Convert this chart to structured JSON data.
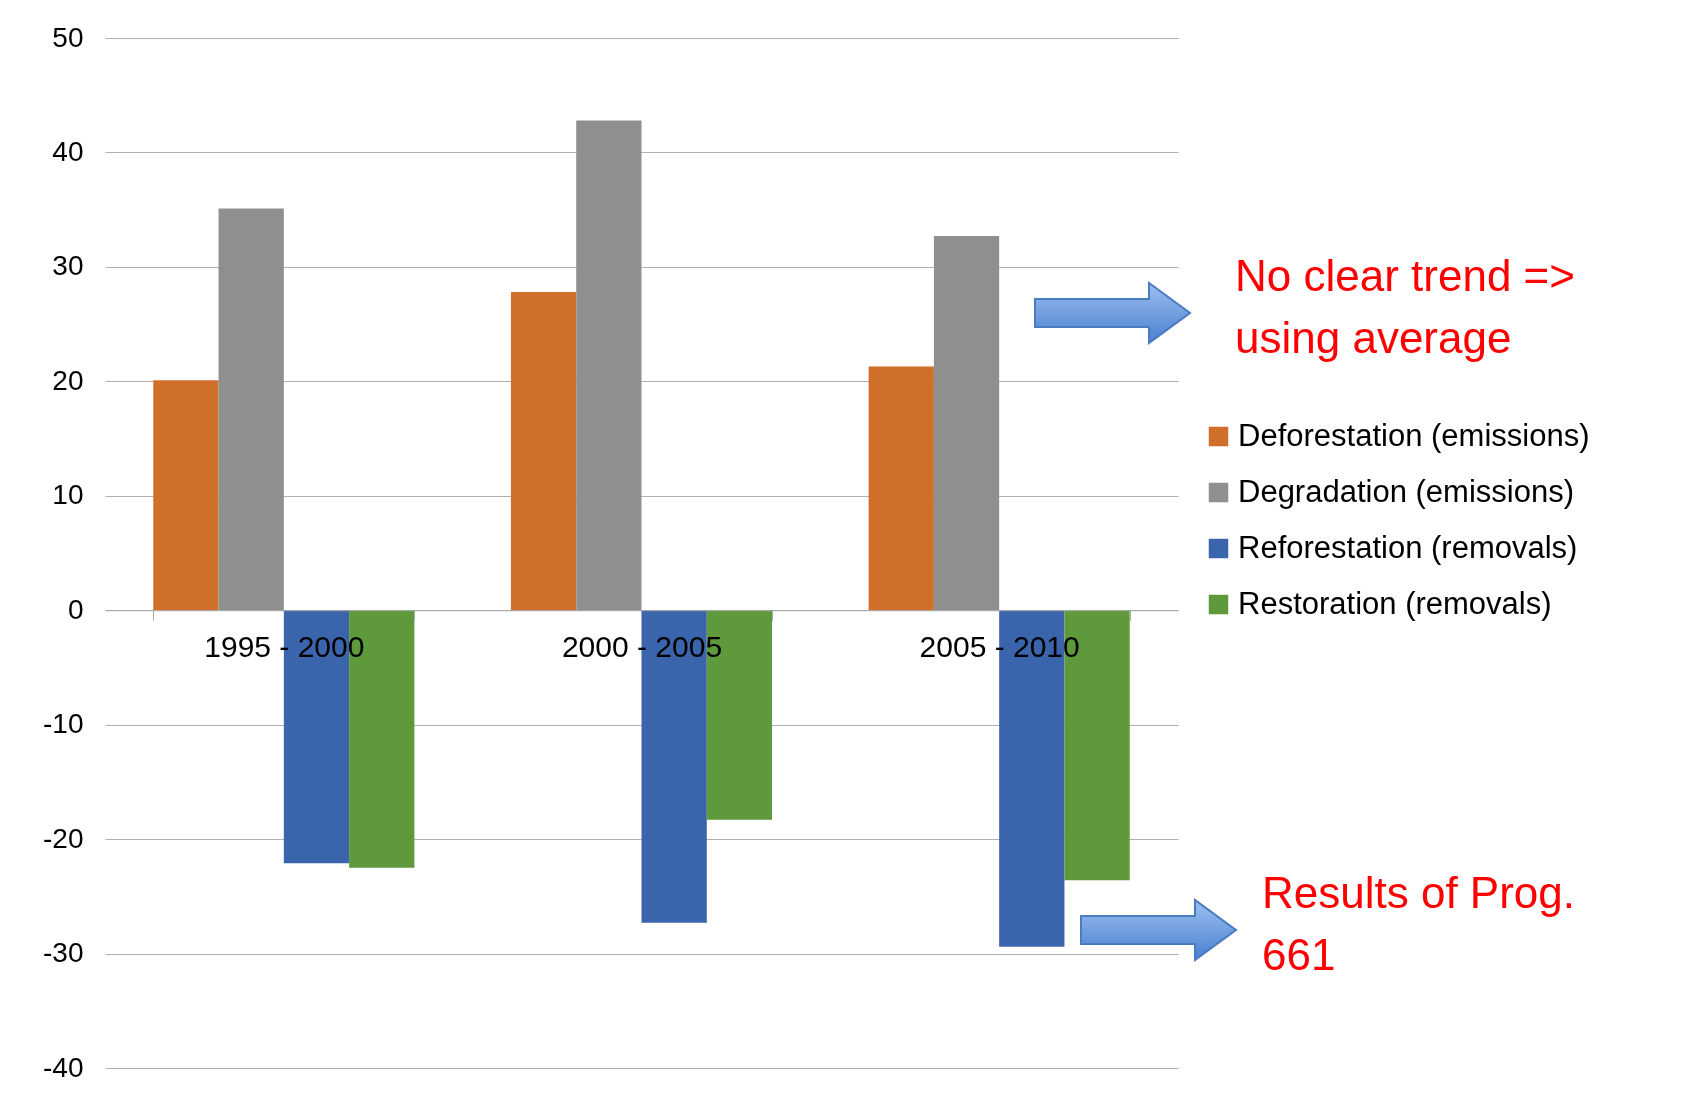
{
  "chart_data": {
    "type": "bar",
    "categories": [
      "1995 - 2000",
      "2000 - 2005",
      "2005 - 2010"
    ],
    "series": [
      {
        "name": "Deforestation (emissions)",
        "color": "#d06f2a",
        "values": [
          20.1,
          27.8,
          21.3
        ]
      },
      {
        "name": "Degradation (emissions)",
        "color": "#8f8f8f",
        "values": [
          35.1,
          42.8,
          32.7
        ]
      },
      {
        "name": "Reforestation (removals)",
        "color": "#3a64ab",
        "values": [
          -22.1,
          -27.3,
          -29.4
        ]
      },
      {
        "name": "Restoration (removals)",
        "color": "#5e9a3b",
        "values": [
          -22.5,
          -18.3,
          -23.6
        ]
      }
    ],
    "ylim": [
      -40,
      50
    ],
    "yticks": [
      -40,
      -30,
      -20,
      -10,
      0,
      10,
      20,
      30,
      40,
      50
    ],
    "grid": "y",
    "legend": "right",
    "annotations": [
      "No clear trend => using average",
      "Results of Prog. 661"
    ]
  }
}
